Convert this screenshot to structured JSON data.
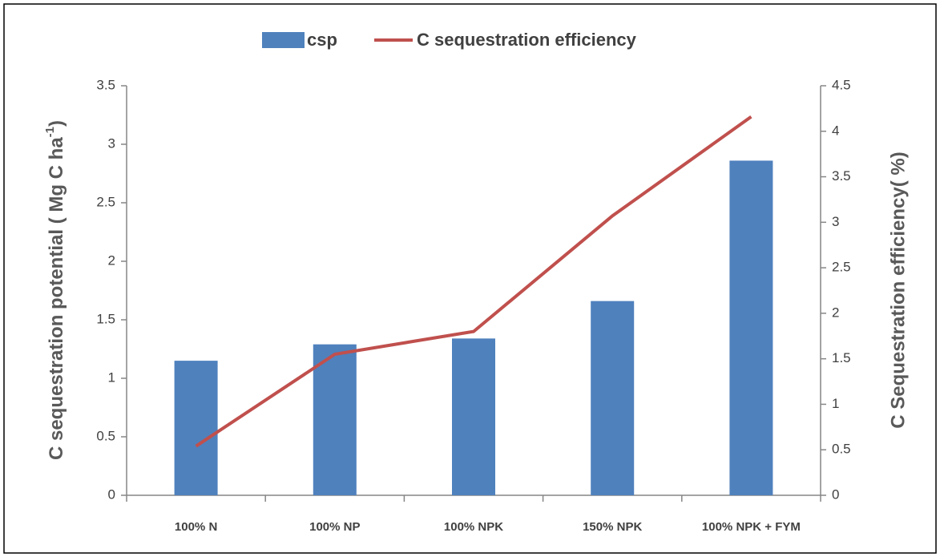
{
  "chart_data": {
    "type": "bar-line",
    "categories": [
      "100% N",
      "100% NP",
      "100% NPK",
      "150% NPK",
      "100% NPK + FYM"
    ],
    "series": [
      {
        "name": "csp",
        "type": "bar",
        "color": "#4f81bd",
        "values": [
          1.15,
          1.29,
          1.34,
          1.66,
          2.86
        ]
      },
      {
        "name": "C sequestration efficiency",
        "type": "line",
        "axis": "y2",
        "color": "#c0504d",
        "values": [
          0.54,
          1.55,
          1.8,
          3.07,
          4.16
        ]
      }
    ],
    "y_label": {
      "text": "C sequestration potential ( Mg C ha",
      "superscript": "-1",
      "suffix": ")"
    },
    "y2_label": "C Sequestration efficiency( %)",
    "ylim": [
      0,
      3.5
    ],
    "yticks": [
      0,
      0.5,
      1,
      1.5,
      2,
      2.5,
      3,
      3.5
    ],
    "y2lim": [
      0,
      4.5
    ],
    "y2ticks": [
      0,
      0.5,
      1,
      1.5,
      2,
      2.5,
      3,
      3.5,
      4,
      4.5
    ],
    "legend": "top",
    "grid": false
  }
}
